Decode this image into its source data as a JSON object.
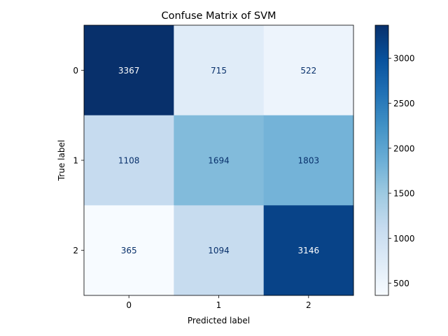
{
  "chart_data": {
    "type": "heatmap",
    "title": "Confuse Matrix of SVM",
    "xlabel": "Predicted label",
    "ylabel": "True label",
    "x_categories": [
      "0",
      "1",
      "2"
    ],
    "y_categories": [
      "0",
      "1",
      "2"
    ],
    "values": [
      [
        3367,
        715,
        522
      ],
      [
        1108,
        1694,
        1803
      ],
      [
        365,
        1094,
        3146
      ]
    ],
    "colormap": "Blues",
    "color_range": [
      365,
      3367
    ],
    "colorbar_ticks": [
      500,
      1000,
      1500,
      2000,
      2500,
      3000
    ],
    "text_colors": {
      "dark_cell": "#ffffff",
      "light_cell": "#08306b"
    }
  }
}
